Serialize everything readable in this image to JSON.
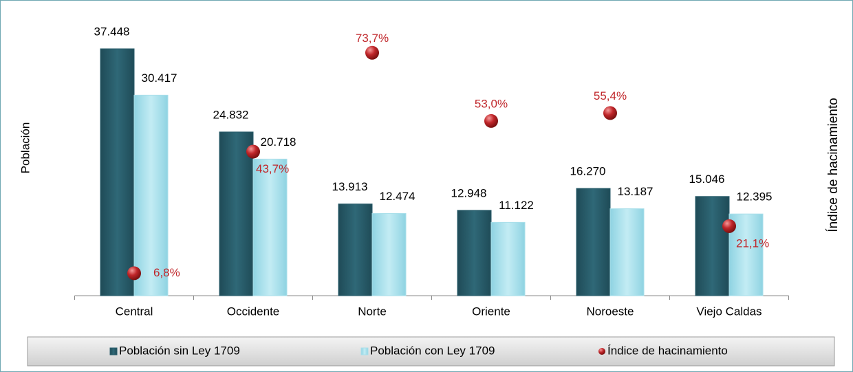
{
  "chart_data": {
    "type": "bar",
    "y_label": "Población",
    "y2_label": "Índice de hacinamiento",
    "categories": [
      "Central",
      "Occidente",
      "Norte",
      "Oriente",
      "Noroeste",
      "Viejo Caldas"
    ],
    "series": [
      {
        "name": "Población sin Ley 1709",
        "color": "#2b5e6c",
        "values": [
          37448,
          24832,
          13913,
          12948,
          16270,
          15046
        ],
        "value_labels": [
          "37.448",
          "24.832",
          "13.913",
          "12.948",
          "16.270",
          "15.046"
        ]
      },
      {
        "name": "Población con Ley 1709",
        "color": "#a9dfea",
        "values": [
          30417,
          20718,
          12474,
          11122,
          13187,
          12395
        ],
        "value_labels": [
          "30.417",
          "20.718",
          "12.474",
          "11.122",
          "13.187",
          "12.395"
        ]
      },
      {
        "name": "Índice de hacinamiento",
        "type": "scatter",
        "axis": "y2",
        "color": "#c0262a",
        "values": [
          6.8,
          43.7,
          73.7,
          53.0,
          55.4,
          21.1
        ],
        "value_labels": [
          "6,8%",
          "43,7%",
          "73,7%",
          "53,0%",
          "55,4%",
          "21,1%"
        ]
      }
    ],
    "ylim": [
      0,
      40000
    ],
    "y2lim": [
      0,
      80
    ],
    "legend": "bottom"
  }
}
